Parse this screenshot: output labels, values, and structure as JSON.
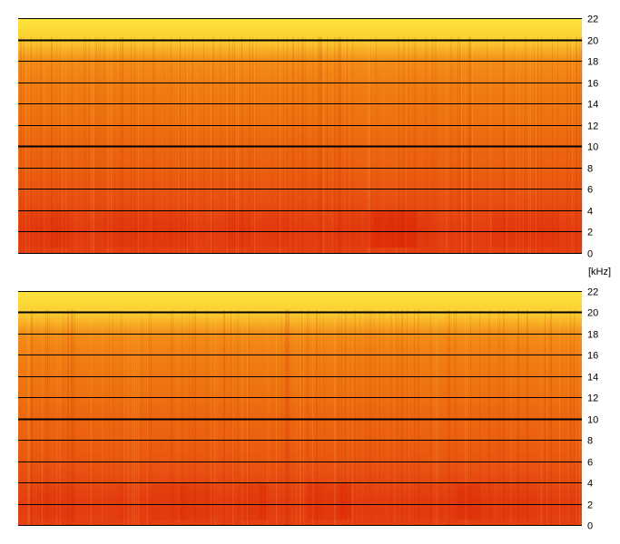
{
  "chart_data": [
    {
      "type": "heatmap",
      "name": "spectrogram-channel-1",
      "y_unit": "[kHz]",
      "ylim": [
        0,
        22
      ],
      "yticks": [
        0,
        2,
        4,
        6,
        8,
        10,
        12,
        14,
        16,
        18,
        20,
        22
      ],
      "ytick_labels": [
        "0",
        "2",
        "4",
        "6",
        "8",
        "10",
        "12",
        "14",
        "16",
        "18",
        "20",
        "22"
      ],
      "bold_gridlines": [
        10,
        20
      ],
      "grid": true,
      "colormap": {
        "low": "#e02810",
        "mid": "#f07a10",
        "high": "#fff040"
      },
      "intensity_by_frequency": [
        {
          "khz": 0,
          "level": 0.15
        },
        {
          "khz": 2,
          "level": 0.12
        },
        {
          "khz": 4,
          "level": 0.2
        },
        {
          "khz": 6,
          "level": 0.28
        },
        {
          "khz": 8,
          "level": 0.34
        },
        {
          "khz": 10,
          "level": 0.38
        },
        {
          "khz": 12,
          "level": 0.44
        },
        {
          "khz": 14,
          "level": 0.48
        },
        {
          "khz": 16,
          "level": 0.52
        },
        {
          "khz": 18,
          "level": 0.58
        },
        {
          "khz": 19,
          "level": 0.72
        },
        {
          "khz": 20,
          "level": 0.86
        },
        {
          "khz": 22,
          "level": 0.95
        }
      ]
    },
    {
      "type": "heatmap",
      "name": "spectrogram-channel-2",
      "y_unit": "[kHz]",
      "ylim": [
        0,
        22
      ],
      "yticks": [
        0,
        2,
        4,
        6,
        8,
        10,
        12,
        14,
        16,
        18,
        20,
        22
      ],
      "ytick_labels": [
        "0",
        "2",
        "4",
        "6",
        "8",
        "10",
        "12",
        "14",
        "16",
        "18",
        "20",
        "22"
      ],
      "bold_gridlines": [
        10,
        20
      ],
      "grid": true,
      "colormap": {
        "low": "#e02810",
        "mid": "#f07a10",
        "high": "#fff040"
      },
      "intensity_by_frequency": [
        {
          "khz": 0,
          "level": 0.15
        },
        {
          "khz": 2,
          "level": 0.12
        },
        {
          "khz": 4,
          "level": 0.2
        },
        {
          "khz": 6,
          "level": 0.28
        },
        {
          "khz": 8,
          "level": 0.34
        },
        {
          "khz": 10,
          "level": 0.38
        },
        {
          "khz": 12,
          "level": 0.44
        },
        {
          "khz": 14,
          "level": 0.48
        },
        {
          "khz": 16,
          "level": 0.52
        },
        {
          "khz": 18,
          "level": 0.58
        },
        {
          "khz": 19,
          "level": 0.72
        },
        {
          "khz": 20,
          "level": 0.86
        },
        {
          "khz": 22,
          "level": 0.95
        }
      ]
    }
  ]
}
